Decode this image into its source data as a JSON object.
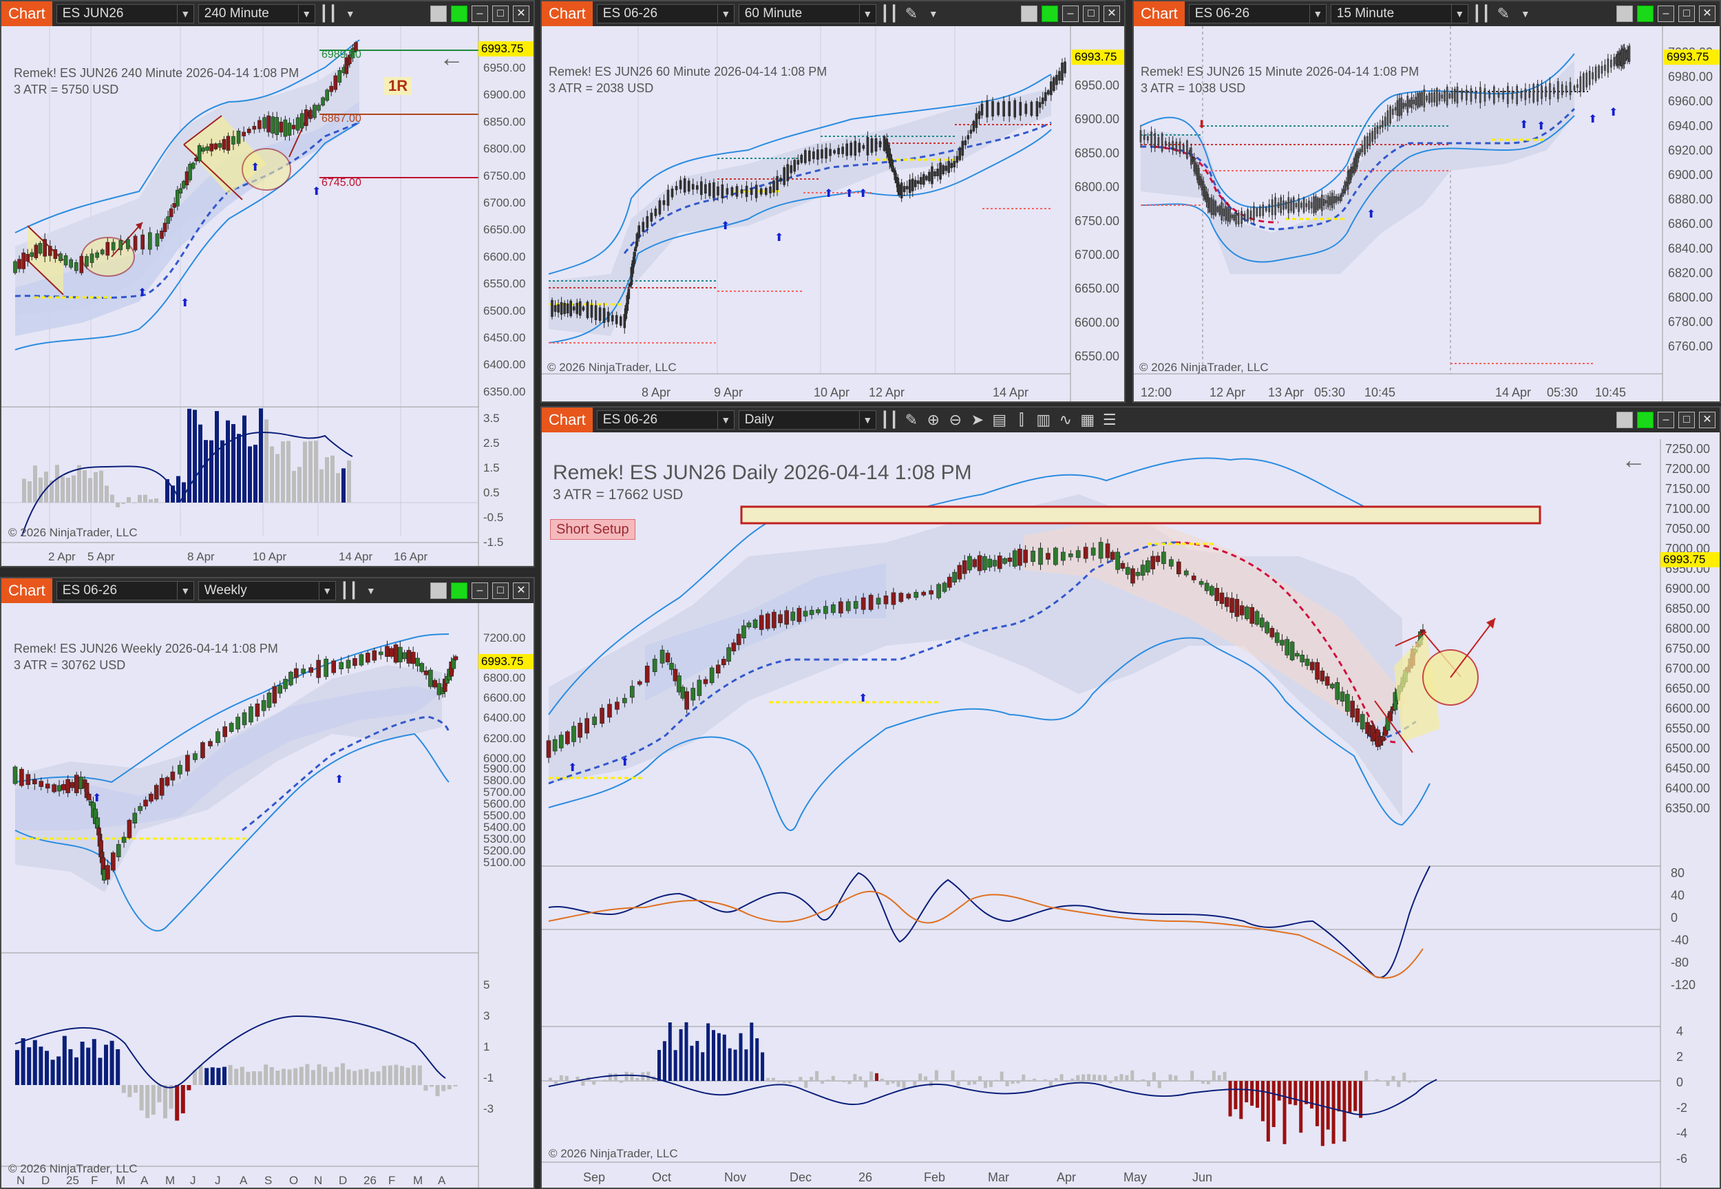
{
  "windows": [
    {
      "tab": "Chart",
      "instrument": "ES JUN26",
      "period": "240 Minute",
      "title": "Remek!  ES JUN26  240 Minute  2026-04-14 1:08 PM",
      "atr": "3 ATR = 5750 USD",
      "copyright": "© 2026 NinjaTrader, LLC",
      "price_ticks": [
        "6950.00",
        "6900.00",
        "6850.00",
        "6800.00",
        "6750.00",
        "6700.00",
        "6650.00",
        "6600.00",
        "6550.00",
        "6500.00",
        "6450.00",
        "6400.00",
        "6350.00"
      ],
      "indicator_ticks": [
        "3.5",
        "2.5",
        "1.5",
        "0.5",
        "-0.5",
        "-1.5"
      ],
      "date_ticks": [
        "2 Apr",
        "5 Apr",
        "8 Apr",
        "10 Apr",
        "14 Apr",
        "16 Apr"
      ],
      "last_price": "6993.75",
      "levels": [
        {
          "value": "6989.00",
          "color": "#1e8a3a"
        },
        {
          "value": "6867.00",
          "color": "#b0451e"
        },
        {
          "value": "6745.00",
          "color": "#c01030"
        }
      ],
      "marker": "1R"
    },
    {
      "tab": "Chart",
      "instrument": "ES 06-26",
      "period": "60 Minute",
      "title": "Remek!  ES JUN26  60 Minute  2026-04-14 1:08 PM",
      "atr": "3 ATR = 2038 USD",
      "copyright": "© 2026 NinjaTrader, LLC",
      "price_ticks": [
        "6950.00",
        "6900.00",
        "6850.00",
        "6800.00",
        "6750.00",
        "6700.00",
        "6650.00",
        "6600.00",
        "6550.00"
      ],
      "date_ticks": [
        "8 Apr",
        "9 Apr",
        "10 Apr",
        "12 Apr",
        "14 Apr"
      ],
      "last_price": "6993.75"
    },
    {
      "tab": "Chart",
      "instrument": "ES 06-26",
      "period": "15 Minute",
      "title": "Remek!  ES JUN26  15 Minute  2026-04-14 1:08 PM",
      "atr": "3 ATR = 1038 USD",
      "copyright": "© 2026 NinjaTrader, LLC",
      "price_ticks": [
        "7000.00",
        "6980.00",
        "6960.00",
        "6940.00",
        "6920.00",
        "6900.00",
        "6880.00",
        "6860.00",
        "6840.00",
        "6820.00",
        "6800.00",
        "6780.00",
        "6760.00"
      ],
      "date_ticks": [
        "12:00",
        "12 Apr",
        "13 Apr",
        "05:30",
        "10:45",
        "14 Apr",
        "05:30",
        "10:45"
      ],
      "last_price": "6993.75"
    },
    {
      "tab": "Chart",
      "instrument": "ES 06-26",
      "period": "Weekly",
      "title": "Remek!  ES JUN26  Weekly  2026-04-14 1:08 PM",
      "atr": "3 ATR = 30762 USD",
      "copyright": "© 2026 NinjaTrader, LLC",
      "price_ticks": [
        "7200.00",
        "6800.00",
        "6600.00",
        "6400.00",
        "6200.00",
        "6000.00",
        "5900.00",
        "5800.00",
        "5700.00",
        "5600.00",
        "5500.00",
        "5400.00",
        "5300.00",
        "5200.00",
        "5100.00"
      ],
      "indicator_ticks": [
        "5",
        "3",
        "1",
        "-1",
        "-3"
      ],
      "date_ticks": [
        "N",
        "D",
        "25",
        "F",
        "M",
        "A",
        "M",
        "J",
        "J",
        "A",
        "S",
        "O",
        "N",
        "D",
        "26",
        "F",
        "M",
        "A"
      ],
      "last_price": "6993.75"
    },
    {
      "tab": "Chart",
      "instrument": "ES 06-26",
      "period": "Daily",
      "title": "Remek!  ES JUN26  Daily  2026-04-14 1:08 PM",
      "atr": "3 ATR = 17662 USD",
      "copyright": "© 2026 NinjaTrader, LLC",
      "setup_label": "Short Setup",
      "price_ticks": [
        "7250.00",
        "7200.00",
        "7150.00",
        "7100.00",
        "7050.00",
        "7000.00",
        "6950.00",
        "6900.00",
        "6850.00",
        "6800.00",
        "6750.00",
        "6700.00",
        "6650.00",
        "6600.00",
        "6550.00",
        "6500.00",
        "6450.00",
        "6400.00",
        "6350.00"
      ],
      "osc_ticks": [
        "80",
        "40",
        "0",
        "-40",
        "-80",
        "-120"
      ],
      "hist_ticks": [
        "4",
        "2",
        "0",
        "-2",
        "-4",
        "-6"
      ],
      "date_ticks": [
        "Sep",
        "Oct",
        "Nov",
        "Dec",
        "26",
        "Feb",
        "Mar",
        "Apr",
        "May",
        "Jun"
      ],
      "last_price": "6993.75"
    }
  ],
  "colors": {
    "accent": "#e8561c",
    "bull": "#2d7a2d",
    "bear": "#8b1a1a",
    "band": "#2a8ce0",
    "avg": "#3358cc",
    "price_flag": "#ffee00",
    "hist_blue": "#0b1f7a",
    "hist_grey": "#bdbdbd",
    "hist_red": "#9a1010"
  },
  "icons": [
    "bar-style-icon",
    "draw-tool-icon",
    "zoom-in-icon",
    "zoom-out-icon",
    "pointer-icon",
    "data-box-icon",
    "strategies-icon",
    "indicators-icon",
    "drawings-icon",
    "properties-icon",
    "templates-icon"
  ]
}
